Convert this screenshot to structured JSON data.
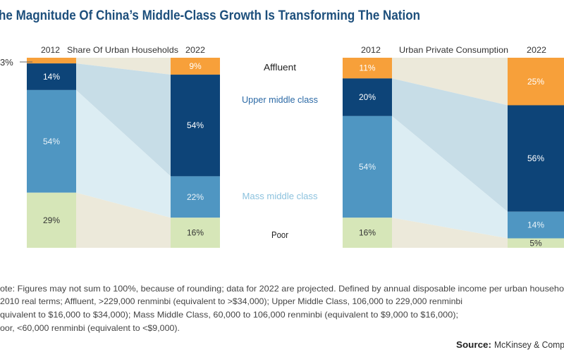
{
  "title": "he Magnitude Of China’s Middle-Class Growth Is Transforming The Nation",
  "colors": {
    "title": "#1d4f7c",
    "affluent": "#f7a03a",
    "upper": "#0d4478",
    "mass": "#4f96c2",
    "poor": "#d6e6b8",
    "band_beige": "#ece9da",
    "band_upper": "#c7dde7",
    "band_mass": "#dcedf3",
    "label_upper": "#2c6aa6",
    "label_mass": "#8cc2de"
  },
  "category_labels": [
    "Affluent",
    "Upper middle class",
    "Mass middle class",
    "Poor"
  ],
  "chart_data": [
    {
      "type": "bar",
      "stacked": true,
      "title": "Share Of Urban Households",
      "categories": [
        "2012",
        "2022"
      ],
      "series": [
        {
          "name": "Affluent",
          "values": [
            3,
            9
          ],
          "labels": [
            "3%",
            "9%"
          ]
        },
        {
          "name": "Upper middle class",
          "values": [
            14,
            54
          ],
          "labels": [
            "14%",
            "54%"
          ]
        },
        {
          "name": "Mass middle class",
          "values": [
            54,
            22
          ],
          "labels": [
            "54%",
            "22%"
          ]
        },
        {
          "name": "Poor",
          "values": [
            29,
            16
          ],
          "labels": [
            "29%",
            "16%"
          ]
        }
      ]
    },
    {
      "type": "bar",
      "stacked": true,
      "title": "Urban Private Consumption",
      "categories": [
        "2012",
        "2022"
      ],
      "series": [
        {
          "name": "Affluent",
          "values": [
            11,
            25
          ],
          "labels": [
            "11%",
            "25%"
          ]
        },
        {
          "name": "Upper middle class",
          "values": [
            20,
            56
          ],
          "labels": [
            "20%",
            "56%"
          ]
        },
        {
          "name": "Mass middle class",
          "values": [
            54,
            14
          ],
          "labels": [
            "54%",
            "14%"
          ]
        },
        {
          "name": "Poor",
          "values": [
            16,
            5
          ],
          "labels": [
            "16%",
            "5%"
          ]
        }
      ]
    }
  ],
  "note": {
    "lines": [
      "ote: Figures may not sum to 100%, because of rounding; data for 2022 are projected. Defined by annual disposable income per urban househo",
      " 2010 real terms; Affluent, >229,000 renminbi (equivalent to >$34,000); Upper Middle Class, 106,000 to 229,000 renminbi",
      "quivalent to $16,000 to $34,000); Mass Middle Class, 60,000 to 106,000 renminbi (equivalent to $9,000 to $16,000);",
      "oor, <60,000 renminbi (equivalent to <$9,000)."
    ],
    "source_label": "Source:",
    "source_text": "McKinsey & Comp"
  }
}
